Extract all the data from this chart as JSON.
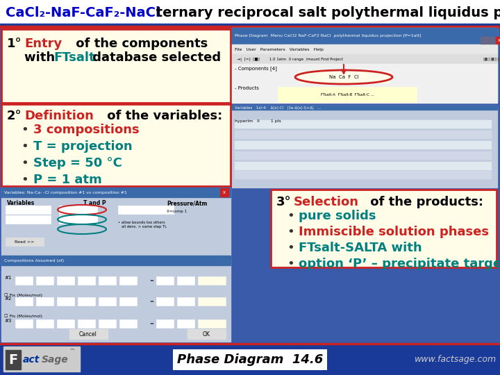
{
  "title_part1": "CaCl₂-NaF-CaF₂-NaCl",
  "title_part2": " ternary reciprocal salt polythermal liquidus projection",
  "title_color1": "#0000cc",
  "title_color2": "#000000",
  "background_color": "#e8e8f0",
  "panel_bg": "#fffde7",
  "panel_border": "#cc2222",
  "step1_num": "1°",
  "step1_kw": "Entry",
  "step1_kw_color": "#cc2222",
  "step1_line1_rest": " of the components",
  "step1_line2_pre": "with ",
  "step1_ftsalt": "FTsalt",
  "step1_ftsalt_color": "#008080",
  "step1_line2_post": " database selected",
  "step2_num": "2°",
  "step2_kw": "Definition",
  "step2_kw_color": "#cc2222",
  "step2_rest": " of the variables:",
  "step2_bullets": [
    {
      "text": "3 compositions",
      "color": "#cc2222"
    },
    {
      "text": "T = projection",
      "color": "#008080"
    },
    {
      "text": "Step = 50 °C",
      "color": "#008080"
    },
    {
      "text": "P = 1 atm",
      "color": "#008080"
    }
  ],
  "step3_num": "3°",
  "step3_kw": "Selection",
  "step3_kw_color": "#cc2222",
  "step3_rest": " of the products:",
  "step3_bullets": [
    {
      "text": "pure solids",
      "color": "#008080"
    },
    {
      "text": "Immiscible solution phases",
      "color": "#cc2222"
    },
    {
      "text": "FTsalt-SALTA with",
      "color": "#008080"
    },
    {
      "text": "option ‘P’ – precipitate target",
      "color": "#008080"
    }
  ],
  "footer_bg": "#1a3a9a",
  "footer_sep_color": "#cc2222",
  "footer_center": "Phase Diagram  14.6",
  "footer_right": "www.factsage.com",
  "ss_bg": "#c0ccdd",
  "ss_titlebar": "#3a6aaa",
  "ss_red": "#cc2222",
  "ss_teal": "#008080",
  "win_bg": "#1a3a9a",
  "comp_win_bg": "#3355aa"
}
